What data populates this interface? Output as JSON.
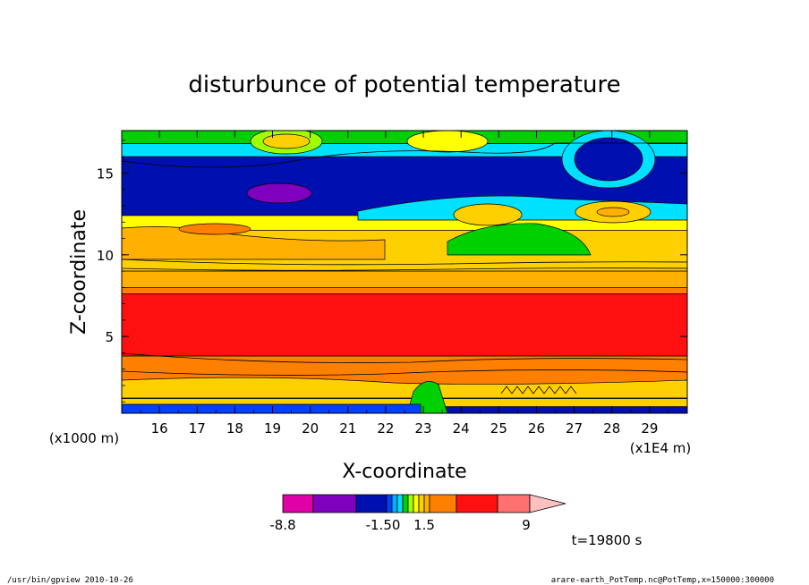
{
  "chart_data": {
    "type": "heatmap",
    "title": "disturbunce of potential temperature",
    "xlabel": "X-coordinate",
    "ylabel": "Z-coordinate",
    "x_unit_label": "(x1E4 m)",
    "z_unit_label": "(x1000 m)",
    "xlim": [
      15,
      30
    ],
    "ylim": [
      0.3,
      17.6
    ],
    "x_ticks": [
      "16",
      "17",
      "18",
      "19",
      "20",
      "21",
      "22",
      "23",
      "24",
      "25",
      "26",
      "27",
      "28",
      "29"
    ],
    "y_ticks": [
      "5",
      "10",
      "15"
    ],
    "grid": false,
    "colorbar": {
      "colors": [
        "#e000a8",
        "#8000c0",
        "#0010b0",
        "#0040ff",
        "#00b0ff",
        "#00e0ff",
        "#00d000",
        "#a0ff00",
        "#ffff00",
        "#ffd000",
        "#ffb000",
        "#ff8000",
        "#ff1010",
        "#ff7070",
        "#ffc0c0"
      ],
      "tick_labels": [
        "-8.8",
        "-1.50",
        "1.5",
        "9"
      ]
    },
    "time_label": "t=19800 s",
    "bands": [
      {
        "level": "#00d000",
        "z_top": 17.6,
        "z_bot": 16.8
      },
      {
        "level": "#00e0ff",
        "z_top": 16.8,
        "z_bot": 16.0
      },
      {
        "level": "#0010b0",
        "z_top": 16.0,
        "z_bot": 12.4
      },
      {
        "level": "#ffff00",
        "z_top": 12.4,
        "z_bot": 11.5
      },
      {
        "level": "#ffd000",
        "z_top": 11.5,
        "z_bot": 9.0
      },
      {
        "level": "#ffb000",
        "z_top": 9.0,
        "z_bot": 8.0
      },
      {
        "level": "#ff8000",
        "z_top": 8.0,
        "z_bot": 7.6
      },
      {
        "level": "#ff1010",
        "z_top": 7.6,
        "z_bot": 3.8
      },
      {
        "level": "#ff8000",
        "z_top": 3.8,
        "z_bot": 2.0
      },
      {
        "level": "#ffb000",
        "z_top": 2.0,
        "z_bot": 1.2
      },
      {
        "level": "#ffd000",
        "z_top": 1.2,
        "z_bot": 0.7
      },
      {
        "level": "#0010b0",
        "z_top": 0.7,
        "z_bot": 0.3
      }
    ]
  },
  "footer": {
    "left": "/usr/bin/gpview   2010-10-26",
    "right": "arare-earth_PotTemp.nc@PotTemp,x=150000:300000"
  }
}
